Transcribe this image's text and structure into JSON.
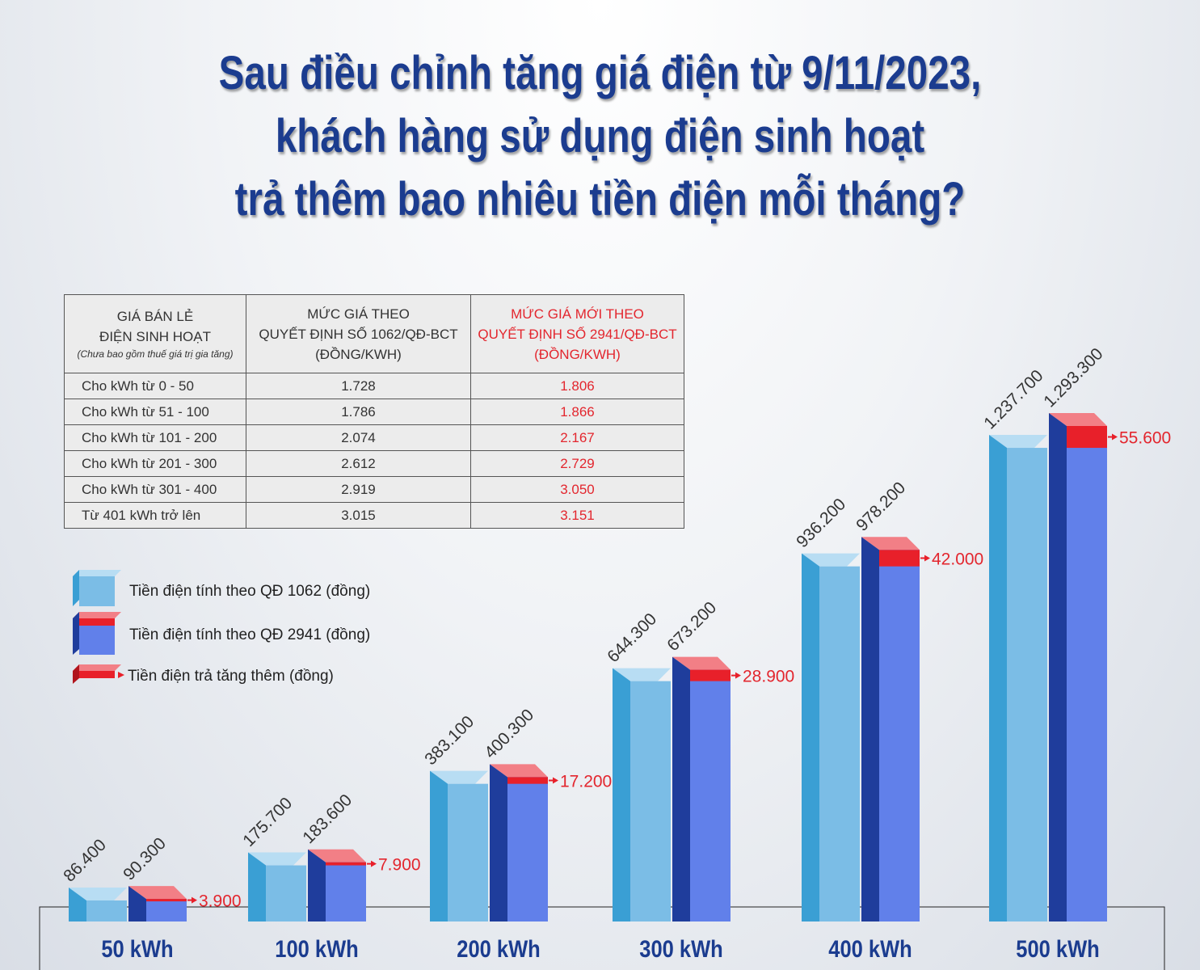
{
  "title": {
    "line1": "Sau điều chỉnh tăng giá điện từ 9/11/2023,",
    "line2": "khách hàng sử dụng điện sinh hoạt",
    "line3": "trả thêm bao nhiêu tiền điện mỗi tháng?"
  },
  "table": {
    "headers": {
      "col1_line1": "GIÁ BÁN LẺ",
      "col1_line2": "ĐIỆN SINH HOẠT",
      "col1_note": "(Chưa bao gồm thuế giá trị gia tăng)",
      "col2_line1": "MỨC GIÁ THEO",
      "col2_line2": "QUYẾT ĐỊNH SỐ 1062/QĐ-BCT",
      "col2_line3": "(ĐỒNG/KWH)",
      "col3_line1": "MỨC GIÁ MỚI THEO",
      "col3_line2": "QUYẾT ĐỊNH SỐ 2941/QĐ-BCT",
      "col3_line3": "(ĐỒNG/KWH)"
    },
    "rows": [
      {
        "label": "Cho kWh từ 0 - 50",
        "old": "1.728",
        "new": "1.806"
      },
      {
        "label": "Cho kWh từ  51 - 100",
        "old": "1.786",
        "new": "1.866"
      },
      {
        "label": "Cho kWh từ 101 - 200",
        "old": "2.074",
        "new": "2.167"
      },
      {
        "label": "Cho kWh từ 201 - 300",
        "old": "2.612",
        "new": "2.729"
      },
      {
        "label": "Cho kWh từ 301 - 400",
        "old": "2.919",
        "new": "3.050"
      },
      {
        "label": "Từ 401 kWh trở lên",
        "old": "3.015",
        "new": "3.151"
      }
    ]
  },
  "legend": [
    {
      "label": "Tiền điện tính theo QĐ 1062 (đồng)"
    },
    {
      "label": "Tiền điện tính theo QĐ 2941 (đồng)"
    },
    {
      "label": "Tiền điện trả tăng thêm (đồng)"
    }
  ],
  "colors": {
    "old_front": "#7bbde6",
    "old_side": "#3a9fd4",
    "old_top": "#b8ddf3",
    "new_front": "#6180ea",
    "new_side": "#1f3d9c",
    "increase": "#e8202a",
    "increase_top": "#f27f86",
    "title": "#1b3c8f",
    "red_text": "#e3262e"
  },
  "chart_data": {
    "type": "bar",
    "categories": [
      "50 kWh",
      "100 kWh",
      "200 kWh",
      "300 kWh",
      "400 kWh",
      "500 kWh"
    ],
    "series": [
      {
        "name": "Tiền điện tính theo QĐ 1062 (đồng)",
        "values": [
          86400,
          175700,
          383100,
          644300,
          936200,
          1237700
        ],
        "labels": [
          "86.400",
          "175.700",
          "383.100",
          "644.300",
          "936.200",
          "1.237.700"
        ]
      },
      {
        "name": "Tiền điện tính theo QĐ 2941 (đồng)",
        "values": [
          90300,
          183600,
          400300,
          673200,
          978200,
          1293300
        ],
        "labels": [
          "90.300",
          "183.600",
          "400.300",
          "673.200",
          "978.200",
          "1.293.300"
        ]
      },
      {
        "name": "Tiền điện trả tăng thêm (đồng)",
        "values": [
          3900,
          7900,
          17200,
          28900,
          42000,
          55600
        ],
        "labels": [
          "3.900",
          "7.900",
          "17.200",
          "28.900",
          "42.000",
          "55.600"
        ]
      }
    ],
    "ylim": [
      0,
      1293300
    ]
  }
}
